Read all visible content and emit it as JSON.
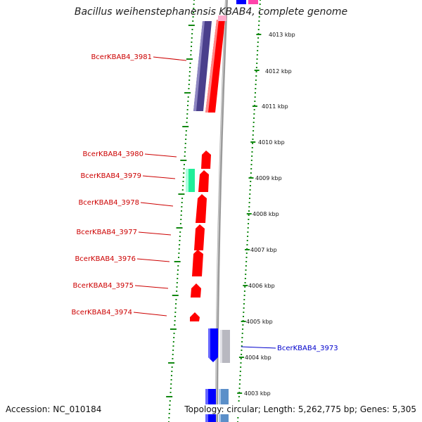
{
  "title": "Bacillus weihenstephanensis KBAB4, complete genome",
  "footer": {
    "accession": "Accession: NC_010184",
    "topology": "Topology: circular; Length: 5,262,775 bp; Genes: 5,305"
  },
  "colors": {
    "forward_gene": "#ff0000",
    "reverse_gene": "#0000ff",
    "reverse_label": "#0000cc",
    "forward_label": "#cc0000",
    "purple_gene": "#4a3f8c",
    "teal_gene": "#22ee99",
    "grey_gene": "#b8b8c0",
    "steel_gene": "#5b8fc9",
    "pink_gene": "#ff44aa",
    "gc_ticks": "#118811",
    "backbone": "#888888"
  },
  "ruler_labels": [
    "4013 kbp",
    "4012 kbp",
    "4011 kbp",
    "4010 kbp",
    "4009 kbp",
    "4008 kbp",
    "4007 kbp",
    "4006 kbp",
    "4005 kbp",
    "4004 kbp",
    "4003 kbp"
  ],
  "gene_labels": [
    {
      "text": "BcerKBAB4_3981",
      "strand": "forward"
    },
    {
      "text": "BcerKBAB4_3980",
      "strand": "forward"
    },
    {
      "text": "BcerKBAB4_3979",
      "strand": "forward"
    },
    {
      "text": "BcerKBAB4_3978",
      "strand": "forward"
    },
    {
      "text": "BcerKBAB4_3977",
      "strand": "forward"
    },
    {
      "text": "BcerKBAB4_3976",
      "strand": "forward"
    },
    {
      "text": "BcerKBAB4_3975",
      "strand": "forward"
    },
    {
      "text": "BcerKBAB4_3974",
      "strand": "forward"
    },
    {
      "text": "BcerKBAB4_3973",
      "strand": "reverse"
    }
  ]
}
